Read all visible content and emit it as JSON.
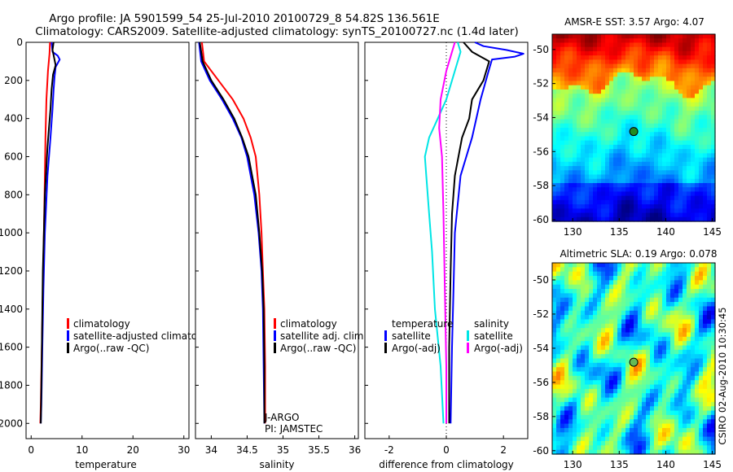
{
  "header": {
    "title_line1": "Argo profile: JA 5901599_54 25-Jul-2010 20100729_8 54.82S 136.561E",
    "title_line2": "Climatology: CARS2009. Satellite-adjusted climatology: synTS_20100727.nc (1.4d later)"
  },
  "side_stamp": "CSIRO 02-Aug-2010 10:30:45",
  "chart_data": [
    {
      "id": "temperature",
      "type": "line",
      "xlabel": "temperature",
      "ylabel": "",
      "xlim": [
        -1,
        31
      ],
      "ylim": [
        2080,
        0
      ],
      "y_reversed": true,
      "xticks": [
        "0",
        "10",
        "20",
        "30"
      ],
      "xtick_values": [
        0,
        10,
        20,
        30
      ],
      "yticks": [
        "0",
        "200",
        "400",
        "600",
        "800",
        "1000",
        "1200",
        "1400",
        "1600",
        "1800",
        "2000"
      ],
      "ytick_values": [
        0,
        200,
        400,
        600,
        800,
        1000,
        1200,
        1400,
        1600,
        1800,
        2000
      ],
      "legend": [
        "climatology",
        "satellite-adjusted climatology",
        "Argo(..raw -QC)"
      ],
      "series": [
        {
          "name": "climatology",
          "color": "#ff0000",
          "points": [
            [
              3.7,
              0
            ],
            [
              3.6,
              60
            ],
            [
              3.3,
              150
            ],
            [
              3.0,
              300
            ],
            [
              2.8,
              500
            ],
            [
              2.7,
              700
            ],
            [
              2.5,
              1000
            ],
            [
              2.3,
              1300
            ],
            [
              2.1,
              1600
            ],
            [
              1.9,
              1900
            ],
            [
              1.8,
              2000
            ]
          ]
        },
        {
          "name": "satellite-adjusted climatology",
          "color": "#0000ff",
          "points": [
            [
              4.0,
              0
            ],
            [
              4.2,
              50
            ],
            [
              5.2,
              70
            ],
            [
              5.6,
              90
            ],
            [
              4.8,
              130
            ],
            [
              4.6,
              180
            ],
            [
              4.4,
              250
            ],
            [
              4.2,
              350
            ],
            [
              3.8,
              500
            ],
            [
              3.2,
              700
            ],
            [
              2.7,
              1000
            ],
            [
              2.4,
              1300
            ],
            [
              2.2,
              1600
            ],
            [
              2.0,
              1900
            ],
            [
              1.9,
              2000
            ]
          ]
        },
        {
          "name": "Argo(..raw -QC)",
          "color": "#000000",
          "points": [
            [
              4.4,
              0
            ],
            [
              4.2,
              40
            ],
            [
              4.5,
              80
            ],
            [
              4.8,
              120
            ],
            [
              4.3,
              170
            ],
            [
              4.0,
              250
            ],
            [
              3.8,
              350
            ],
            [
              3.5,
              450
            ],
            [
              3.2,
              550
            ],
            [
              3.0,
              650
            ],
            [
              2.7,
              800
            ],
            [
              2.5,
              1000
            ],
            [
              2.3,
              1200
            ],
            [
              2.2,
              1400
            ],
            [
              2.1,
              1600
            ],
            [
              2.0,
              1800
            ],
            [
              1.9,
              2000
            ]
          ]
        }
      ]
    },
    {
      "id": "salinity",
      "type": "line",
      "xlabel": "salinity",
      "ylabel": "",
      "xlim": [
        33.78,
        36.05
      ],
      "ylim": [
        2080,
        0
      ],
      "y_reversed": true,
      "xticks": [
        "34",
        "34.5",
        "35",
        "35.5",
        "36"
      ],
      "xtick_values": [
        34,
        34.5,
        35,
        35.5,
        36
      ],
      "legend": [
        "climatology",
        "satellite adj. clim.",
        "Argo(..raw -QC)"
      ],
      "annotation": [
        "J-ARGO",
        "PI: JAMSTEC"
      ],
      "series": [
        {
          "name": "climatology",
          "color": "#ff0000",
          "points": [
            [
              33.87,
              0
            ],
            [
              33.9,
              100
            ],
            [
              34.1,
              200
            ],
            [
              34.3,
              300
            ],
            [
              34.45,
              400
            ],
            [
              34.55,
              500
            ],
            [
              34.62,
              600
            ],
            [
              34.67,
              800
            ],
            [
              34.7,
              1000
            ],
            [
              34.72,
              1200
            ],
            [
              34.74,
              1400
            ],
            [
              34.75,
              1700
            ],
            [
              34.75,
              2000
            ]
          ]
        },
        {
          "name": "satellite adj. clim.",
          "color": "#0000ff",
          "points": [
            [
              33.83,
              0
            ],
            [
              33.86,
              100
            ],
            [
              33.98,
              200
            ],
            [
              34.15,
              300
            ],
            [
              34.3,
              400
            ],
            [
              34.42,
              500
            ],
            [
              34.5,
              600
            ],
            [
              34.6,
              800
            ],
            [
              34.66,
              1000
            ],
            [
              34.7,
              1200
            ],
            [
              34.72,
              1400
            ],
            [
              34.73,
              1700
            ],
            [
              34.74,
              2000
            ]
          ]
        },
        {
          "name": "Argo(..raw -QC)",
          "color": "#000000",
          "points": [
            [
              33.84,
              0
            ],
            [
              33.88,
              100
            ],
            [
              34.0,
              200
            ],
            [
              34.17,
              300
            ],
            [
              34.32,
              400
            ],
            [
              34.43,
              500
            ],
            [
              34.52,
              600
            ],
            [
              34.62,
              800
            ],
            [
              34.67,
              1000
            ],
            [
              34.71,
              1200
            ],
            [
              34.73,
              1400
            ],
            [
              34.74,
              1700
            ],
            [
              34.74,
              2000
            ]
          ]
        }
      ]
    },
    {
      "id": "difference",
      "type": "line",
      "xlabel": "difference from climatology",
      "ylabel": "",
      "xlim": [
        -2.85,
        2.85
      ],
      "ylim": [
        2080,
        0
      ],
      "y_reversed": true,
      "xticks": [
        "-2",
        "0",
        "2"
      ],
      "xtick_values": [
        -2,
        0,
        2
      ],
      "legend_titles": [
        "temperature",
        "salinity"
      ],
      "legend": [
        "satellite",
        "Argo(-adj)",
        "satellite",
        "Argo(-adj)"
      ],
      "series": [
        {
          "name": "temperature satellite",
          "color": "#0000ff",
          "points": [
            [
              1.0,
              0
            ],
            [
              1.3,
              20
            ],
            [
              2.1,
              40
            ],
            [
              2.7,
              60
            ],
            [
              2.4,
              75
            ],
            [
              1.6,
              90
            ],
            [
              1.5,
              140
            ],
            [
              1.2,
              300
            ],
            [
              0.9,
              500
            ],
            [
              0.5,
              700
            ],
            [
              0.3,
              1000
            ],
            [
              0.25,
              1300
            ],
            [
              0.2,
              1600
            ],
            [
              0.15,
              2000
            ]
          ]
        },
        {
          "name": "temperature Argo(-adj)",
          "color": "#000000",
          "points": [
            [
              0.6,
              0
            ],
            [
              0.9,
              50
            ],
            [
              1.5,
              100
            ],
            [
              1.3,
              200
            ],
            [
              0.9,
              300
            ],
            [
              0.8,
              400
            ],
            [
              0.55,
              500
            ],
            [
              0.3,
              700
            ],
            [
              0.2,
              900
            ],
            [
              0.15,
              1200
            ],
            [
              0.1,
              1600
            ],
            [
              0.1,
              2000
            ]
          ]
        },
        {
          "name": "salinity satellite",
          "color": "#00e5e5",
          "points": [
            [
              0.4,
              0
            ],
            [
              0.5,
              50
            ],
            [
              0.4,
              100
            ],
            [
              0.2,
              200
            ],
            [
              0.0,
              300
            ],
            [
              -0.3,
              400
            ],
            [
              -0.6,
              500
            ],
            [
              -0.75,
              600
            ],
            [
              -0.7,
              700
            ],
            [
              -0.6,
              900
            ],
            [
              -0.5,
              1100
            ],
            [
              -0.4,
              1400
            ],
            [
              -0.2,
              1700
            ],
            [
              -0.1,
              2000
            ]
          ]
        },
        {
          "name": "salinity Argo(-adj)",
          "color": "#ff00ff",
          "points": [
            [
              0.3,
              0
            ],
            [
              0.2,
              50
            ],
            [
              0.0,
              150
            ],
            [
              -0.2,
              300
            ],
            [
              -0.25,
              450
            ],
            [
              -0.15,
              600
            ],
            [
              -0.1,
              900
            ],
            [
              -0.05,
              1300
            ],
            [
              0.0,
              1700
            ],
            [
              0.0,
              2000
            ]
          ]
        }
      ]
    },
    {
      "id": "sst_map",
      "type": "heatmap",
      "title": "AMSR-E SST: 3.57 Argo: 4.07",
      "xlim": [
        127.8,
        145.3
      ],
      "ylim": [
        -60.1,
        -49.1
      ],
      "xticks": [
        "130",
        "135",
        "140",
        "145"
      ],
      "xtick_values": [
        130,
        135,
        140,
        145
      ],
      "yticks": [
        "-50",
        "-52",
        "-54",
        "-56",
        "-58",
        "-60"
      ],
      "ytick_values": [
        -50,
        -52,
        -54,
        -56,
        -58,
        -60
      ],
      "marker": {
        "lon": 136.56,
        "lat": -54.82
      }
    },
    {
      "id": "sla_map",
      "type": "heatmap",
      "title": "Altimetric SLA: 0.19 Argo: 0.078",
      "xlim": [
        127.8,
        145.3
      ],
      "ylim": [
        -60.2,
        -49.0
      ],
      "xticks": [
        "130",
        "135",
        "140",
        "145"
      ],
      "xtick_values": [
        130,
        135,
        140,
        145
      ],
      "yticks": [
        "-50",
        "-52",
        "-54",
        "-56",
        "-58",
        "-60"
      ],
      "ytick_values": [
        -50,
        -52,
        -54,
        -56,
        -58,
        -60
      ],
      "marker": {
        "lon": 136.56,
        "lat": -54.82
      }
    }
  ]
}
